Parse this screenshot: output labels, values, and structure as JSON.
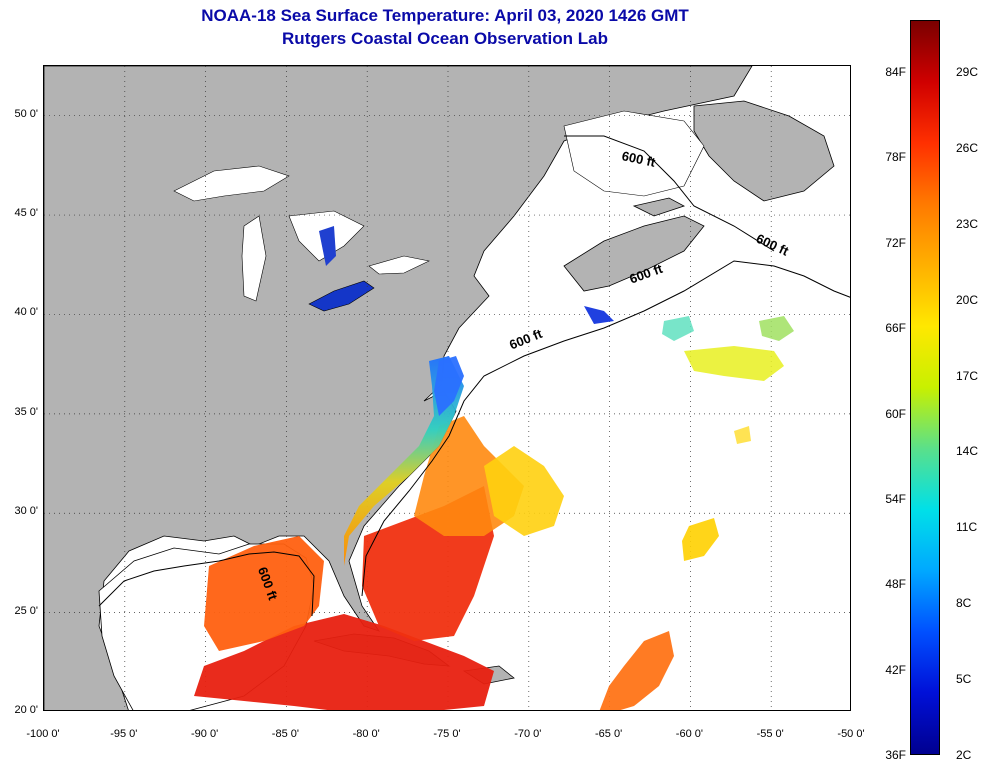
{
  "header": {
    "title_line1": "NOAA-18 Sea Surface Temperature:  April 03, 2020 1426 GMT",
    "title_line2": "Rutgers Coastal Ocean Observation Lab"
  },
  "map": {
    "lon_range": [
      -100,
      -50
    ],
    "lat_range": [
      20,
      52.5
    ],
    "lat_ticks": [
      {
        "value": 20,
        "label": "20 0'"
      },
      {
        "value": 25,
        "label": "25 0'"
      },
      {
        "value": 30,
        "label": "30 0'"
      },
      {
        "value": 35,
        "label": "35 0'"
      },
      {
        "value": 40,
        "label": "40 0'"
      },
      {
        "value": 45,
        "label": "45 0'"
      },
      {
        "value": 50,
        "label": "50 0'"
      }
    ],
    "lon_ticks": [
      {
        "value": -100,
        "label": "-100 0'"
      },
      {
        "value": -95,
        "label": "-95 0'"
      },
      {
        "value": -90,
        "label": "-90 0'"
      },
      {
        "value": -85,
        "label": "-85 0'"
      },
      {
        "value": -80,
        "label": "-80 0'"
      },
      {
        "value": -75,
        "label": "-75 0'"
      },
      {
        "value": -70,
        "label": "-70 0'"
      },
      {
        "value": -65,
        "label": "-65 0'"
      },
      {
        "value": -60,
        "label": "-60 0'"
      },
      {
        "value": -55,
        "label": "-55 0'"
      },
      {
        "value": -50,
        "label": "-50 0'"
      }
    ],
    "depth_contour_labels": [
      "600 ft",
      "600 ft",
      "600 ft",
      "600 ft",
      "600 ft"
    ],
    "land_color": "#b3b3b3",
    "grid": true
  },
  "colorbar": {
    "fahrenheit_labels": [
      "84F",
      "78F",
      "72F",
      "66F",
      "60F",
      "54F",
      "48F",
      "42F",
      "36F"
    ],
    "celsius_labels": [
      "29C",
      "26C",
      "23C",
      "20C",
      "17C",
      "14C",
      "11C",
      "8C",
      "5C",
      "2C"
    ],
    "colors_top_to_bottom": [
      "#7a0000",
      "#d00000",
      "#ff3000",
      "#ff7a00",
      "#ffb000",
      "#ffe800",
      "#c8f000",
      "#5ae08a",
      "#00e0e8",
      "#00a8ff",
      "#0050ff",
      "#0010d8",
      "#000090"
    ]
  }
}
